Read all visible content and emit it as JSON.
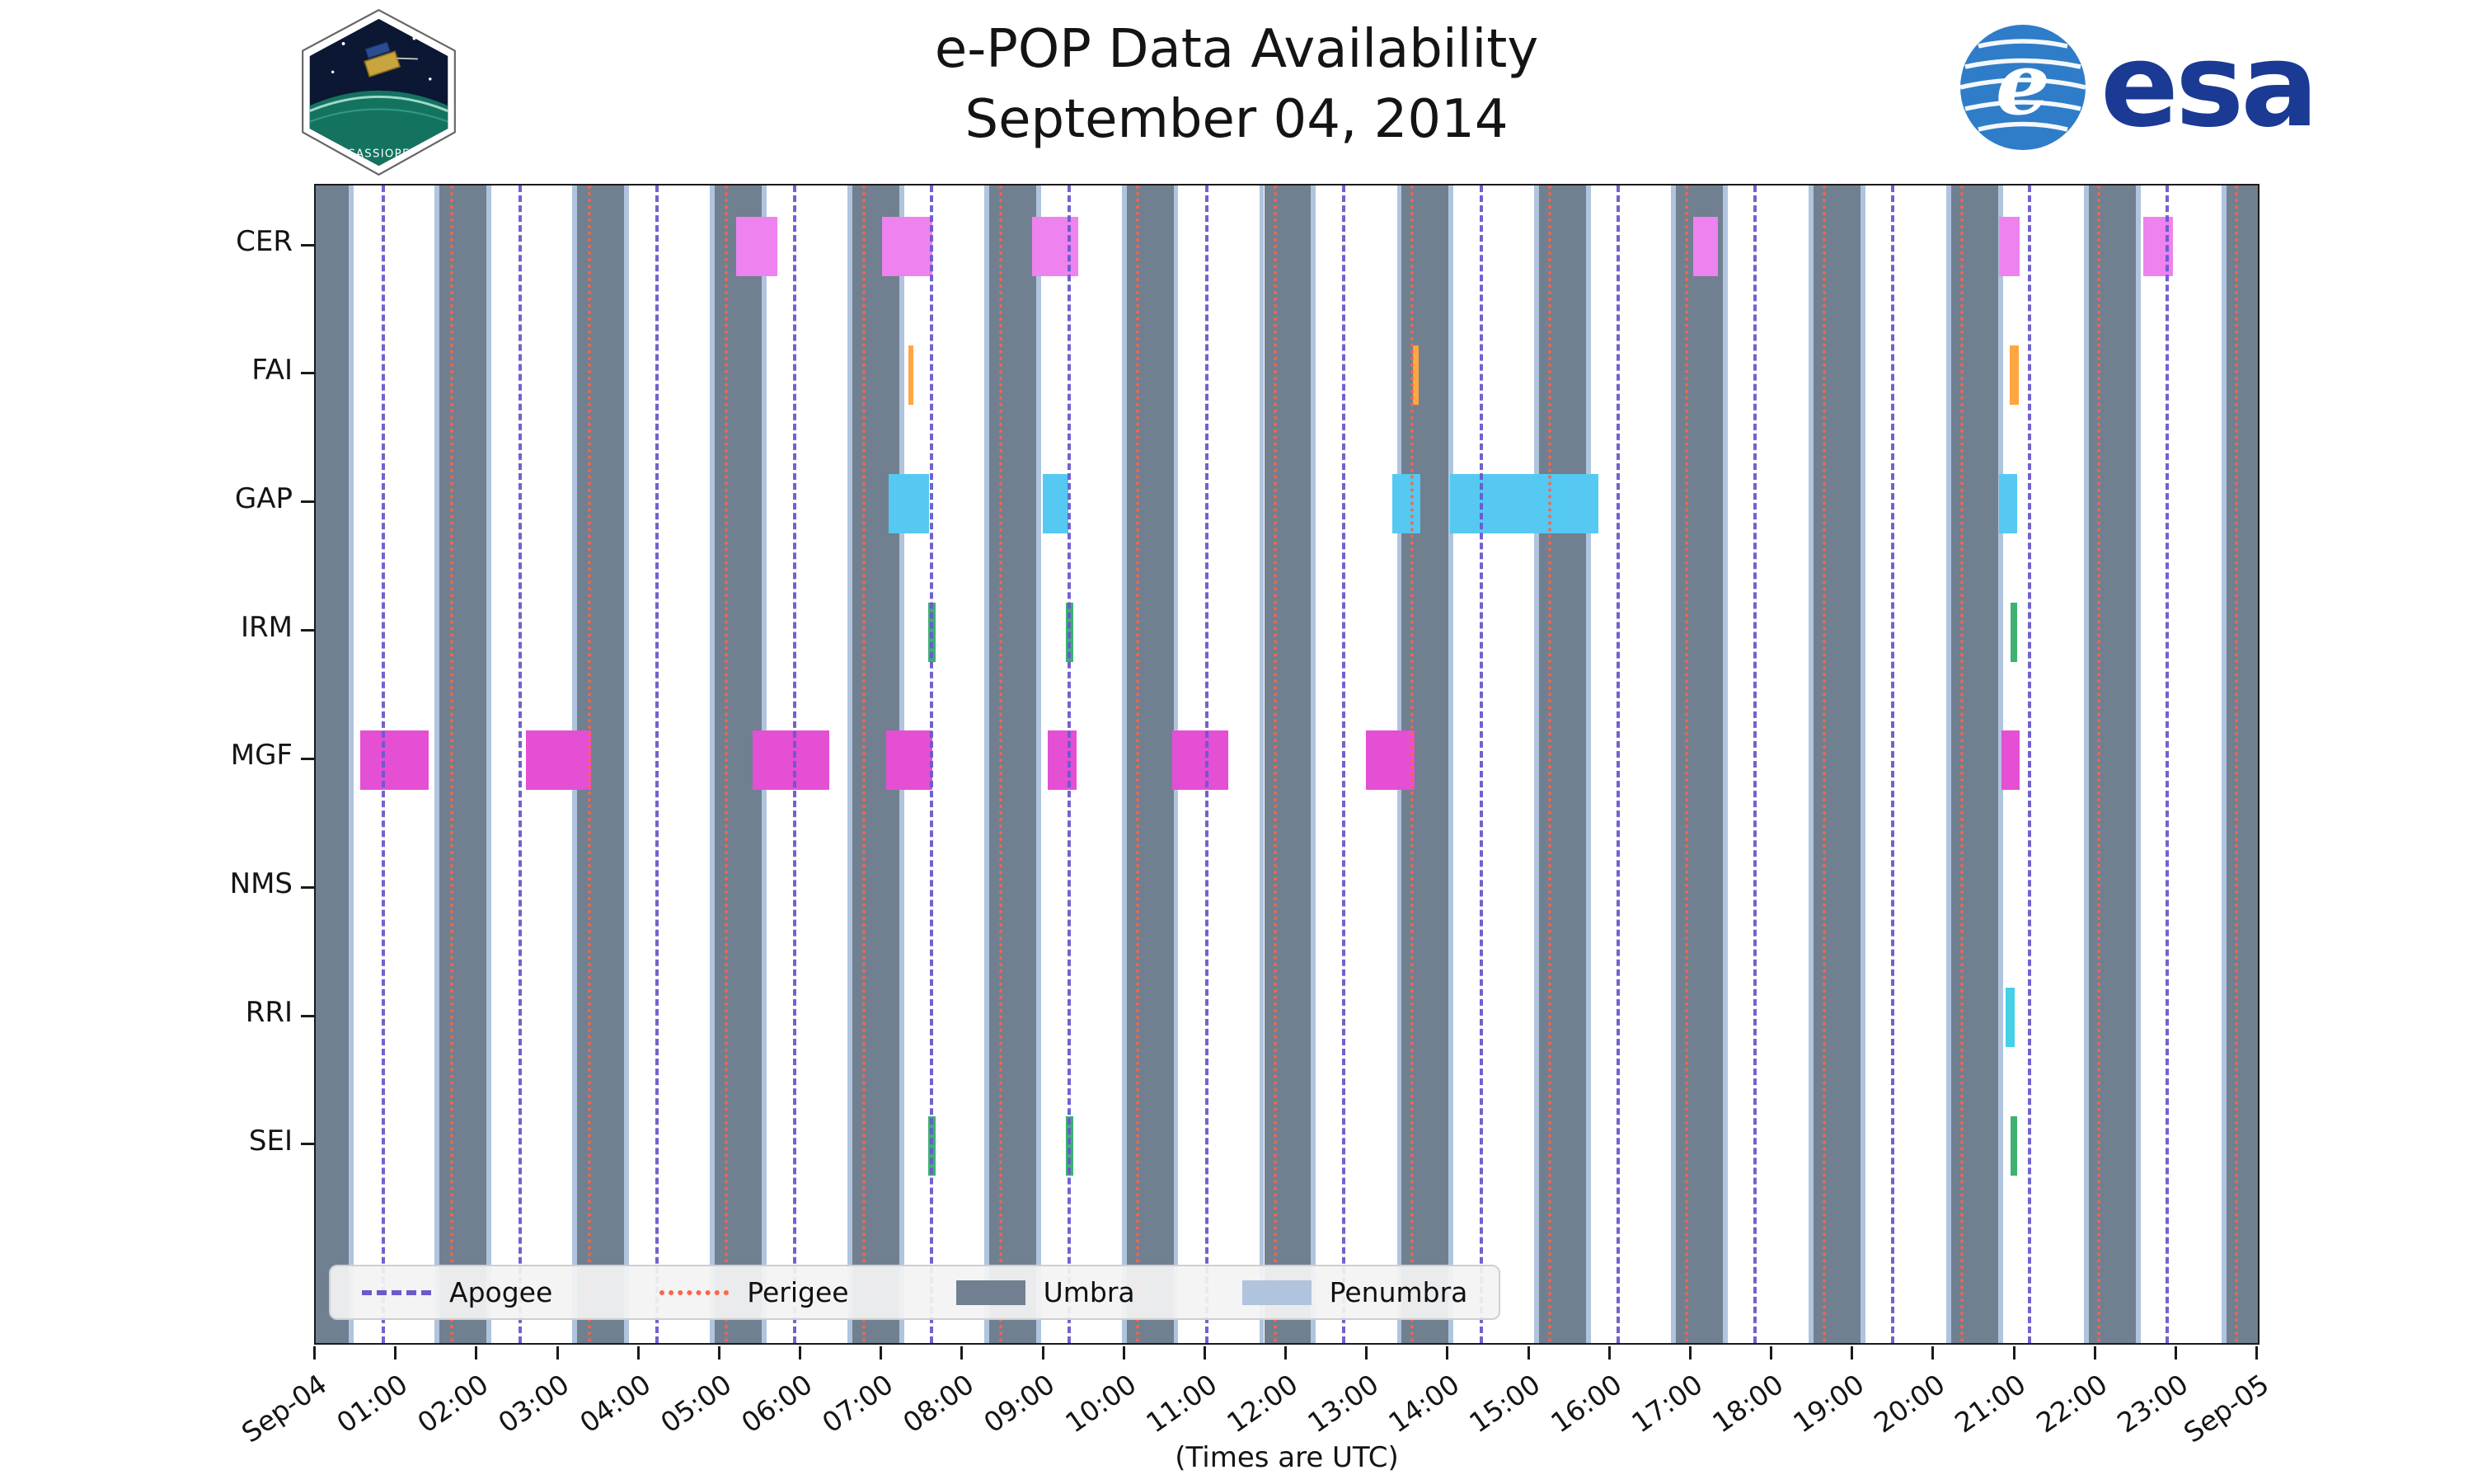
{
  "header": {
    "cassiope_patch_label": "CASSIOPE",
    "esa_wordmark": "esa",
    "esa_globe_letter": "e"
  },
  "chart_data": {
    "type": "timeline",
    "title": "e-POP Data Availability",
    "subtitle": "September 04, 2014",
    "xlabel": "(Times are UTC)",
    "x_axis_hours_range": [
      0,
      24
    ],
    "x_tick_labels": [
      "Sep-04",
      "01:00",
      "02:00",
      "03:00",
      "04:00",
      "05:00",
      "06:00",
      "07:00",
      "08:00",
      "09:00",
      "10:00",
      "11:00",
      "12:00",
      "13:00",
      "14:00",
      "15:00",
      "16:00",
      "17:00",
      "18:00",
      "19:00",
      "20:00",
      "21:00",
      "22:00",
      "23:00",
      "Sep-05"
    ],
    "y_categories": [
      "CER",
      "FAI",
      "GAP",
      "IRM",
      "MGF",
      "NMS",
      "RRI",
      "SEI"
    ],
    "legend": [
      {
        "label": "Apogee",
        "style": "dashed",
        "color": "#6a5acd"
      },
      {
        "label": "Perigee",
        "style": "dotted",
        "color": "#ff6347"
      },
      {
        "label": "Umbra",
        "style": "patch",
        "color": "#708090"
      },
      {
        "label": "Penumbra",
        "style": "patch",
        "color": "#b0c4de"
      }
    ],
    "umbra_intervals_hours": [
      [
        0.0,
        0.41
      ],
      [
        1.53,
        2.11
      ],
      [
        3.23,
        3.81
      ],
      [
        4.93,
        5.51
      ],
      [
        6.63,
        7.21
      ],
      [
        8.32,
        8.9
      ],
      [
        10.02,
        10.6
      ],
      [
        11.72,
        12.3
      ],
      [
        13.42,
        14.0
      ],
      [
        15.12,
        15.7
      ],
      [
        16.81,
        17.39
      ],
      [
        18.51,
        19.09
      ],
      [
        20.21,
        20.79
      ],
      [
        21.91,
        22.49
      ],
      [
        23.61,
        24.0
      ]
    ],
    "penumbra_edge_width_hours": 0.06,
    "apogee_times_hours": [
      0.81,
      2.51,
      4.2,
      5.9,
      7.59,
      9.29,
      10.99,
      12.68,
      14.38,
      16.07,
      17.77,
      19.47,
      21.16,
      22.86
    ],
    "perigee_times_hours": [
      1.66,
      3.36,
      5.05,
      6.75,
      8.44,
      10.14,
      11.84,
      13.53,
      15.23,
      16.92,
      18.62,
      20.32,
      22.01,
      23.71
    ],
    "series": [
      {
        "name": "CER",
        "color": "#ee82ee",
        "intervals_hours": [
          [
            5.2,
            5.7
          ],
          [
            7.0,
            7.62
          ],
          [
            8.85,
            9.42
          ],
          [
            17.02,
            17.33
          ],
          [
            20.8,
            21.06
          ],
          [
            22.58,
            22.95
          ]
        ]
      },
      {
        "name": "FAI",
        "color": "#ffa640",
        "intervals_hours": [
          [
            7.32,
            7.38
          ],
          [
            13.56,
            13.63
          ],
          [
            20.93,
            21.05
          ]
        ]
      },
      {
        "name": "GAP",
        "color": "#55c9f2",
        "intervals_hours": [
          [
            7.08,
            7.58
          ],
          [
            8.98,
            9.3
          ],
          [
            13.3,
            13.65
          ],
          [
            14.02,
            15.85
          ],
          [
            20.8,
            21.03
          ]
        ]
      },
      {
        "name": "IRM",
        "color": "#3cb371",
        "intervals_hours": [
          [
            7.57,
            7.66
          ],
          [
            9.27,
            9.36
          ],
          [
            20.94,
            21.03
          ]
        ]
      },
      {
        "name": "MGF",
        "color": "#e44fd4",
        "intervals_hours": [
          [
            0.55,
            1.4
          ],
          [
            2.6,
            3.4
          ],
          [
            5.4,
            6.35
          ],
          [
            7.05,
            7.62
          ],
          [
            9.05,
            9.4
          ],
          [
            10.58,
            11.28
          ],
          [
            12.98,
            13.58
          ],
          [
            20.83,
            21.06
          ]
        ]
      },
      {
        "name": "NMS",
        "color": "#bbbbbb",
        "intervals_hours": []
      },
      {
        "name": "RRI",
        "color": "#45d0e8",
        "intervals_hours": [
          [
            20.88,
            21.0
          ]
        ]
      },
      {
        "name": "SEI",
        "color": "#3cb371",
        "intervals_hours": [
          [
            7.57,
            7.66
          ],
          [
            9.27,
            9.36
          ],
          [
            20.94,
            21.03
          ]
        ]
      }
    ]
  }
}
